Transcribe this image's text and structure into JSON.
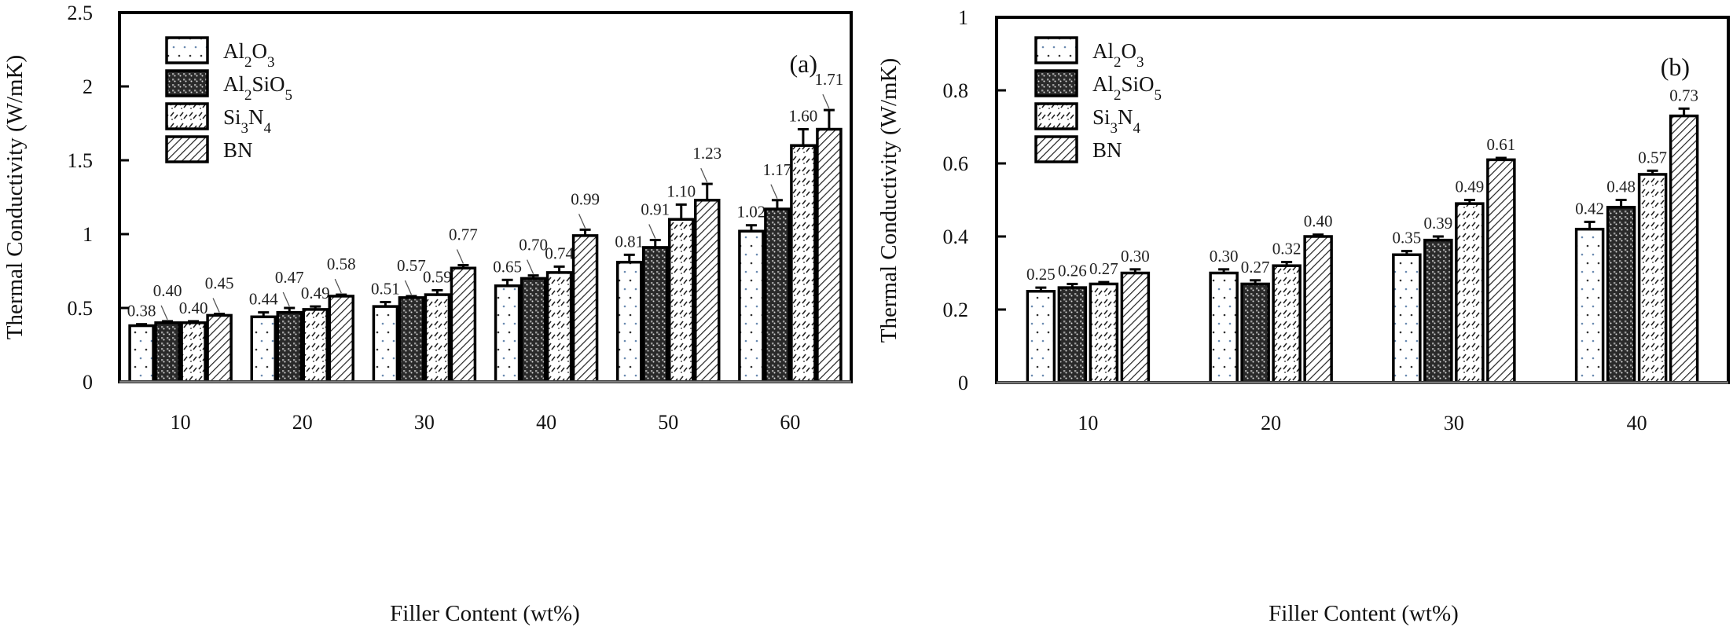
{
  "chart_data": [
    {
      "type": "bar",
      "panel_label": "(a)",
      "xlabel": "Filler Content (wt%)",
      "ylabel": "Thermal Conductivity (W/mK)",
      "ylim": [
        0,
        2.5
      ],
      "yticks": [
        "0",
        "0.5",
        "1",
        "1.5",
        "2",
        "2.5"
      ],
      "categories": [
        "10",
        "20",
        "30",
        "40",
        "50",
        "60"
      ],
      "legend_position": "top-left",
      "series": [
        {
          "name": "Al2O3",
          "name_base": [
            "Al",
            "O"
          ],
          "name_subs": [
            "2",
            "3"
          ],
          "pattern": "dots",
          "values": [
            0.38,
            0.44,
            0.51,
            0.65,
            0.81,
            1.02
          ],
          "errors": [
            0.01,
            0.03,
            0.03,
            0.04,
            0.05,
            0.04
          ],
          "labels": [
            "0.38",
            "0.44",
            "0.51",
            "0.65",
            "0.81",
            "1.02"
          ]
        },
        {
          "name": "Al2SiO5",
          "name_base": [
            "Al",
            "SiO"
          ],
          "name_subs": [
            "2",
            "5"
          ],
          "pattern": "grid-dark",
          "values": [
            0.4,
            0.47,
            0.57,
            0.7,
            0.91,
            1.17
          ],
          "errors": [
            0.01,
            0.03,
            0.01,
            0.02,
            0.05,
            0.06
          ],
          "labels": [
            "0.40",
            "0.47",
            "0.57",
            "0.70",
            "0.91",
            "1.17"
          ]
        },
        {
          "name": "Si3N4",
          "name_base": [
            "Si",
            "N"
          ],
          "name_subs": [
            "3",
            "4"
          ],
          "pattern": "waves",
          "values": [
            0.4,
            0.49,
            0.59,
            0.74,
            1.1,
            1.6
          ],
          "errors": [
            0.01,
            0.02,
            0.03,
            0.04,
            0.1,
            0.11
          ],
          "labels": [
            "0.40",
            "0.49",
            "0.59",
            "0.74",
            "1.10",
            "1.60"
          ]
        },
        {
          "name": "BN",
          "name_base": [
            "BN"
          ],
          "name_subs": [],
          "pattern": "hatch",
          "values": [
            0.45,
            0.58,
            0.77,
            0.99,
            1.23,
            1.71
          ],
          "errors": [
            0.01,
            0.01,
            0.02,
            0.04,
            0.11,
            0.13
          ],
          "labels": [
            "0.45",
            "0.58",
            "0.77",
            "0.99",
            "1.23",
            "1.71"
          ]
        }
      ]
    },
    {
      "type": "bar",
      "panel_label": "(b)",
      "xlabel": "Filler Content (wt%)",
      "ylabel": "Thermal Conductivity (W/mK)",
      "ylim": [
        0,
        1
      ],
      "yticks": [
        "0",
        "0.2",
        "0.4",
        "0.6",
        "0.8",
        "1"
      ],
      "categories": [
        "10",
        "20",
        "30",
        "40"
      ],
      "legend_position": "top-left",
      "series": [
        {
          "name": "Al2O3",
          "name_base": [
            "Al",
            "O"
          ],
          "name_subs": [
            "2",
            "3"
          ],
          "pattern": "dots",
          "values": [
            0.25,
            0.3,
            0.35,
            0.42
          ],
          "errors": [
            0.01,
            0.01,
            0.01,
            0.02
          ],
          "labels": [
            "0.25",
            "0.30",
            "0.35",
            "0.42"
          ]
        },
        {
          "name": "Al2SiO5",
          "name_base": [
            "Al",
            "SiO"
          ],
          "name_subs": [
            "2",
            "5"
          ],
          "pattern": "grid-dark",
          "values": [
            0.26,
            0.27,
            0.39,
            0.48
          ],
          "errors": [
            0.01,
            0.01,
            0.01,
            0.02
          ],
          "labels": [
            "0.26",
            "0.27",
            "0.39",
            "0.48"
          ]
        },
        {
          "name": "Si3N4",
          "name_base": [
            "Si",
            "N"
          ],
          "name_subs": [
            "3",
            "4"
          ],
          "pattern": "waves",
          "values": [
            0.27,
            0.32,
            0.49,
            0.57
          ],
          "errors": [
            0.005,
            0.01,
            0.01,
            0.01
          ],
          "labels": [
            "0.27",
            "0.32",
            "0.49",
            "0.57"
          ]
        },
        {
          "name": "BN",
          "name_base": [
            "BN"
          ],
          "name_subs": [],
          "pattern": "hatch",
          "values": [
            0.3,
            0.4,
            0.61,
            0.73
          ],
          "errors": [
            0.01,
            0.005,
            0.005,
            0.02
          ],
          "labels": [
            "0.30",
            "0.40",
            "0.61",
            "0.73"
          ]
        }
      ]
    }
  ]
}
